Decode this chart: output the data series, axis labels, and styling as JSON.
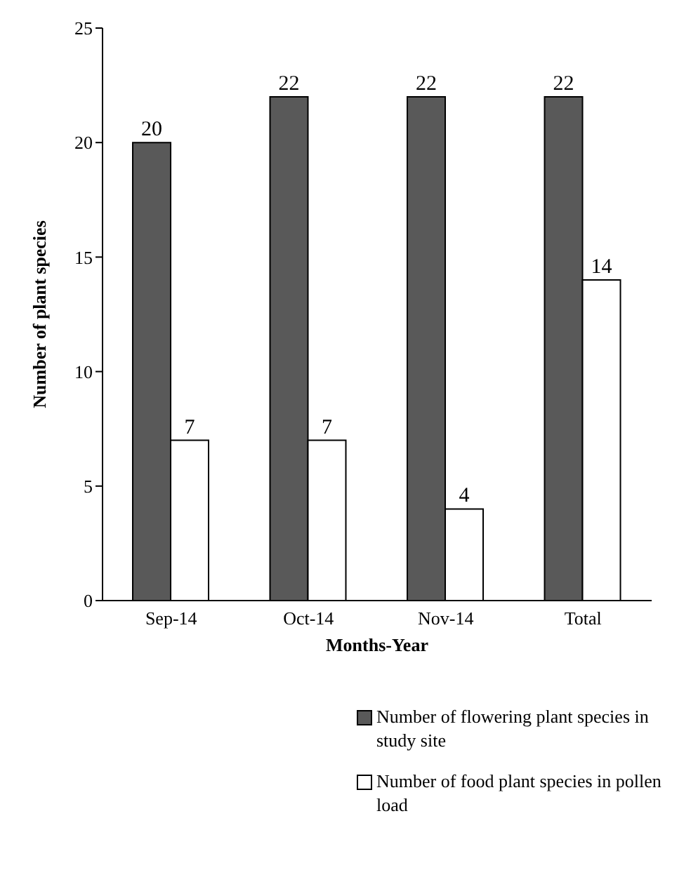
{
  "chart_data": {
    "type": "bar",
    "xlabel": "Months-Year",
    "ylabel": "Number of plant species",
    "categories": [
      "Sep-14",
      "Oct-14",
      "Nov-14",
      "Total"
    ],
    "series": [
      {
        "name": "Number of flowering plant species in study site",
        "color": "#595959",
        "values": [
          20,
          22,
          22,
          22
        ]
      },
      {
        "name": "Number of food plant species in pollen load",
        "color": "#ffffff",
        "values": [
          7,
          7,
          4,
          14
        ]
      }
    ],
    "ylim": [
      0,
      25
    ],
    "yticks": [
      0,
      5,
      10,
      15,
      20,
      25
    ],
    "grid": false,
    "legend": "bottom right",
    "data_labels": true
  }
}
